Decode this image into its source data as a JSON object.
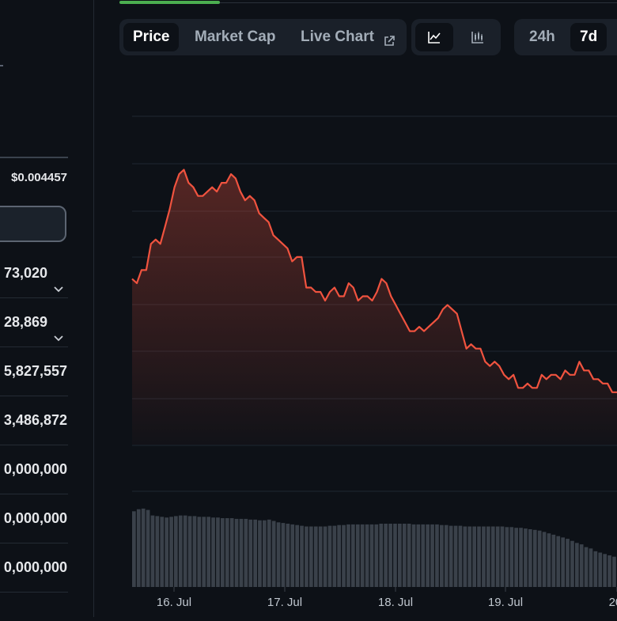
{
  "left_panel": {
    "low_price": "$0.004457",
    "stats": [
      {
        "value": "73,020",
        "chevron": true
      },
      {
        "value": "28,869",
        "chevron": true
      },
      {
        "value": "5,827,557",
        "chevron": false
      },
      {
        "value": "3,486,872",
        "chevron": false
      },
      {
        "value": "0,000,000",
        "chevron": false
      },
      {
        "value": "0,000,000",
        "chevron": false
      },
      {
        "value": "0,000,000",
        "chevron": false
      }
    ]
  },
  "toolbar": {
    "tabs": [
      {
        "label": "Price",
        "active": true
      },
      {
        "label": "Market Cap",
        "active": false
      },
      {
        "label": "Live Chart",
        "active": false,
        "icon": "external-link-icon"
      }
    ],
    "chart_types": [
      {
        "icon": "line-chart-icon",
        "active": true
      },
      {
        "icon": "candlestick-chart-icon",
        "active": false
      }
    ],
    "ranges": [
      {
        "label": "24h",
        "active": false
      },
      {
        "label": "7d",
        "active": true
      }
    ]
  },
  "colors": {
    "background": "#0d1117",
    "line": "#f0533f",
    "volume_bars": "#3a414a",
    "gridline": "#1f2630",
    "active_indicator": "#4caf50"
  },
  "chart_data": {
    "type": "line",
    "x_labels": [
      "16. Jul",
      "17. Jul",
      "18. Jul",
      "19. Jul",
      "20."
    ],
    "series": [
      {
        "values": [
          0.00478,
          0.00477,
          0.0048,
          0.0048,
          0.00486,
          0.00487,
          0.00486,
          0.0049,
          0.00494,
          0.00499,
          0.00502,
          0.00503,
          0.005,
          0.00499,
          0.00497,
          0.00497,
          0.00498,
          0.00499,
          0.00498,
          0.005,
          0.005,
          0.00502,
          0.00501,
          0.00498,
          0.00496,
          0.00497,
          0.00496,
          0.00493,
          0.00492,
          0.00491,
          0.00488,
          0.00487,
          0.00486,
          0.00485,
          0.00482,
          0.00483,
          0.00483,
          0.00476,
          0.00476,
          0.00475,
          0.00475,
          0.00473,
          0.00475,
          0.00476,
          0.00474,
          0.00474,
          0.00477,
          0.00476,
          0.00473,
          0.00474,
          0.00474,
          0.00473,
          0.00475,
          0.00478,
          0.00477,
          0.00474,
          0.00472,
          0.0047,
          0.00468,
          0.00466,
          0.00466,
          0.00467,
          0.00466,
          0.00467,
          0.00468,
          0.00469,
          0.00471,
          0.00472,
          0.00471,
          0.0047,
          0.00466,
          0.00462,
          0.00463,
          0.00462,
          0.00462,
          0.00459,
          0.00458,
          0.00459,
          0.00458,
          0.00456,
          0.00455,
          0.00456,
          0.00453,
          0.00453,
          0.00454,
          0.00453,
          0.00453,
          0.00456,
          0.00455,
          0.00456,
          0.00456,
          0.00455,
          0.00457,
          0.00456,
          0.00456,
          0.00459,
          0.00457,
          0.00457,
          0.00455,
          0.00455,
          0.00454,
          0.00454,
          0.00452,
          0.00452
        ]
      }
    ],
    "volume": [
      110,
      113,
      114,
      112,
      104,
      103,
      102,
      101,
      102,
      103,
      104,
      104,
      103,
      103,
      102,
      102,
      102,
      101,
      101,
      100,
      100,
      100,
      99,
      99,
      99,
      98,
      98,
      97,
      97,
      98,
      96,
      94,
      93,
      92,
      91,
      90,
      89,
      88,
      88,
      88,
      88,
      88,
      89,
      89,
      90,
      90,
      91,
      91,
      91,
      91,
      91,
      91,
      91,
      92,
      92,
      92,
      92,
      92,
      92,
      92,
      91,
      91,
      91,
      91,
      91,
      91,
      90,
      90,
      89,
      89,
      89,
      88,
      88,
      88,
      88,
      88,
      88,
      88,
      88,
      88,
      87,
      87,
      86,
      86,
      85,
      84,
      83,
      82,
      80,
      78,
      76,
      74,
      72,
      70,
      67,
      64,
      62,
      58,
      56,
      52,
      50,
      48,
      46,
      44
    ],
    "xlabel": "",
    "ylabel": "",
    "grid": true
  }
}
